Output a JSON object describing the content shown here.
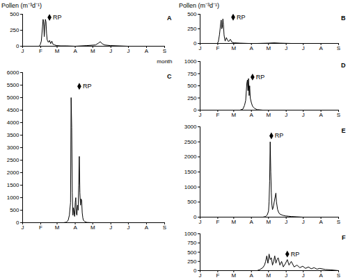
{
  "chart_data": [
    {
      "type": "line",
      "title": "A",
      "y_label": "Pollen (m⁻³d⁻¹)",
      "x_label": "month",
      "color": "#000000",
      "x": [
        0,
        28,
        30,
        32,
        34,
        35,
        36,
        37,
        38,
        39,
        40,
        41,
        42,
        44,
        46,
        48,
        50,
        52,
        55,
        58,
        65,
        75,
        90,
        110,
        125,
        130,
        133,
        136,
        140,
        150,
        165,
        180,
        243
      ],
      "values": [
        0,
        0,
        20,
        80,
        300,
        420,
        380,
        150,
        300,
        420,
        380,
        200,
        100,
        60,
        90,
        40,
        80,
        30,
        20,
        10,
        5,
        5,
        0,
        10,
        20,
        50,
        70,
        40,
        20,
        10,
        5,
        0,
        0
      ],
      "xlim": [
        0,
        243
      ],
      "xticks": [
        {
          "value": 0,
          "label": "J"
        },
        {
          "value": 31,
          "label": "F"
        },
        {
          "value": 59,
          "label": "M"
        },
        {
          "value": 90,
          "label": "A"
        },
        {
          "value": 120,
          "label": "M"
        },
        {
          "value": 151,
          "label": "J"
        },
        {
          "value": 181,
          "label": "J"
        },
        {
          "value": 212,
          "label": "A"
        },
        {
          "value": 243,
          "label": "S"
        }
      ],
      "ylim": [
        0,
        500
      ],
      "yticks": [
        0,
        250,
        500
      ],
      "annotations": [
        {
          "x": 46,
          "y": 450,
          "text": "RP",
          "marker": "diamond"
        }
      ]
    },
    {
      "type": "line",
      "title": "B",
      "y_label": "Pollen (m⁻³d⁻¹)",
      "color": "#000000",
      "x": [
        0,
        30,
        32,
        34,
        36,
        37,
        38,
        39,
        40,
        41,
        42,
        43,
        44,
        46,
        48,
        50,
        53,
        56,
        60,
        70,
        85,
        100,
        120,
        130,
        140,
        160,
        243
      ],
      "values": [
        0,
        0,
        30,
        150,
        330,
        400,
        250,
        280,
        420,
        320,
        150,
        80,
        40,
        100,
        60,
        30,
        70,
        20,
        10,
        5,
        0,
        0,
        5,
        10,
        5,
        0,
        0
      ],
      "xlim": [
        0,
        243
      ],
      "xticks": [
        {
          "value": 0,
          "label": "J"
        },
        {
          "value": 31,
          "label": "F"
        },
        {
          "value": 59,
          "label": "M"
        },
        {
          "value": 90,
          "label": "A"
        },
        {
          "value": 120,
          "label": "M"
        },
        {
          "value": 151,
          "label": "J"
        },
        {
          "value": 181,
          "label": "J"
        },
        {
          "value": 212,
          "label": "A"
        },
        {
          "value": 243,
          "label": "S"
        }
      ],
      "ylim": [
        0,
        500
      ],
      "yticks": [
        0,
        250,
        500
      ],
      "annotations": [
        {
          "x": 58,
          "y": 450,
          "text": "RP",
          "marker": "diamond"
        }
      ]
    },
    {
      "type": "line",
      "title": "C",
      "color": "#000000",
      "x": [
        0,
        70,
        75,
        78,
        80,
        82,
        83,
        84,
        85,
        86,
        87,
        88,
        89,
        90,
        91,
        92,
        93,
        94,
        95,
        96,
        97,
        98,
        99,
        100,
        101,
        102,
        103,
        104,
        106,
        108,
        110,
        115,
        120,
        243
      ],
      "values": [
        0,
        0,
        20,
        100,
        300,
        800,
        5000,
        3800,
        1200,
        300,
        600,
        400,
        250,
        800,
        1000,
        350,
        300,
        700,
        500,
        1500,
        2650,
        1200,
        700,
        950,
        900,
        400,
        200,
        100,
        50,
        30,
        10,
        5,
        0,
        0
      ],
      "xlim": [
        0,
        243
      ],
      "xticks": [
        {
          "value": 0,
          "label": "J"
        },
        {
          "value": 31,
          "label": "F"
        },
        {
          "value": 59,
          "label": "M"
        },
        {
          "value": 90,
          "label": "A"
        },
        {
          "value": 120,
          "label": "M"
        },
        {
          "value": 151,
          "label": "J"
        },
        {
          "value": 181,
          "label": "J"
        },
        {
          "value": 212,
          "label": "A"
        },
        {
          "value": 243,
          "label": "S"
        }
      ],
      "ylim": [
        0,
        6000
      ],
      "yticks": [
        0,
        500,
        1000,
        1500,
        2000,
        2500,
        3000,
        3500,
        4000,
        4500,
        5000,
        5500,
        6000
      ],
      "annotations": [
        {
          "x": 97,
          "y": 5450,
          "text": "RP",
          "marker": "diamond"
        }
      ]
    },
    {
      "type": "line",
      "title": "D",
      "color": "#000000",
      "x": [
        0,
        70,
        75,
        78,
        80,
        82,
        83,
        84,
        85,
        86,
        87,
        88,
        90,
        92,
        95,
        100,
        110,
        243
      ],
      "values": [
        0,
        0,
        20,
        100,
        200,
        550,
        620,
        400,
        650,
        300,
        500,
        250,
        150,
        80,
        40,
        10,
        0,
        0
      ],
      "xlim": [
        0,
        243
      ],
      "xticks": [
        {
          "value": 0,
          "label": "J"
        },
        {
          "value": 31,
          "label": "F"
        },
        {
          "value": 59,
          "label": "M"
        },
        {
          "value": 90,
          "label": "A"
        },
        {
          "value": 120,
          "label": "M"
        },
        {
          "value": 151,
          "label": "J"
        },
        {
          "value": 181,
          "label": "J"
        },
        {
          "value": 212,
          "label": "A"
        },
        {
          "value": 243,
          "label": "S"
        }
      ],
      "ylim": [
        0,
        1000
      ],
      "yticks": [
        0,
        250,
        500,
        750,
        1000
      ],
      "annotations": [
        {
          "x": 92,
          "y": 680,
          "text": "RP",
          "marker": "diamond"
        }
      ]
    },
    {
      "type": "line",
      "title": "E",
      "color": "#000000",
      "x": [
        0,
        110,
        115,
        118,
        120,
        121,
        122,
        123,
        124,
        125,
        126,
        127,
        128,
        130,
        132,
        133,
        134,
        136,
        138,
        140,
        145,
        150,
        155,
        160,
        170,
        180,
        243
      ],
      "values": [
        0,
        0,
        20,
        80,
        200,
        500,
        1200,
        2500,
        1500,
        800,
        400,
        250,
        300,
        500,
        700,
        800,
        500,
        250,
        150,
        100,
        60,
        40,
        30,
        20,
        10,
        0,
        0
      ],
      "xlim": [
        0,
        243
      ],
      "xticks": [
        {
          "value": 0,
          "label": "J"
        },
        {
          "value": 31,
          "label": "F"
        },
        {
          "value": 59,
          "label": "M"
        },
        {
          "value": 90,
          "label": "A"
        },
        {
          "value": 120,
          "label": "M"
        },
        {
          "value": 151,
          "label": "J"
        },
        {
          "value": 181,
          "label": "J"
        },
        {
          "value": 212,
          "label": "A"
        },
        {
          "value": 243,
          "label": "S"
        }
      ],
      "ylim": [
        0,
        3000
      ],
      "yticks": [
        0,
        500,
        1000,
        1500,
        2000,
        2500,
        3000
      ],
      "annotations": [
        {
          "x": 125,
          "y": 2700,
          "text": "RP",
          "marker": "diamond"
        }
      ]
    },
    {
      "type": "line",
      "title": "F",
      "color": "#000000",
      "x": [
        0,
        100,
        105,
        110,
        113,
        115,
        117,
        119,
        121,
        123,
        125,
        127,
        129,
        131,
        133,
        135,
        137,
        140,
        143,
        146,
        150,
        153,
        156,
        160,
        165,
        170,
        175,
        180,
        185,
        190,
        195,
        200,
        205,
        210,
        220,
        230,
        243
      ],
      "values": [
        0,
        0,
        30,
        80,
        150,
        250,
        400,
        200,
        450,
        300,
        350,
        150,
        250,
        400,
        200,
        300,
        350,
        150,
        250,
        100,
        200,
        300,
        150,
        250,
        100,
        150,
        80,
        120,
        60,
        100,
        50,
        80,
        40,
        60,
        30,
        20,
        0
      ],
      "xlim": [
        0,
        243
      ],
      "xticks": [
        {
          "value": 0,
          "label": "J"
        },
        {
          "value": 31,
          "label": "F"
        },
        {
          "value": 59,
          "label": "M"
        },
        {
          "value": 90,
          "label": "A"
        },
        {
          "value": 120,
          "label": "M"
        },
        {
          "value": 151,
          "label": "J"
        },
        {
          "value": 181,
          "label": "J"
        },
        {
          "value": 212,
          "label": "A"
        },
        {
          "value": 243,
          "label": "S"
        }
      ],
      "ylim": [
        0,
        1000
      ],
      "yticks": [
        0,
        250,
        500,
        750,
        1000
      ],
      "annotations": [
        {
          "x": 153,
          "y": 450,
          "text": "RP",
          "marker": "diamond"
        }
      ]
    }
  ]
}
